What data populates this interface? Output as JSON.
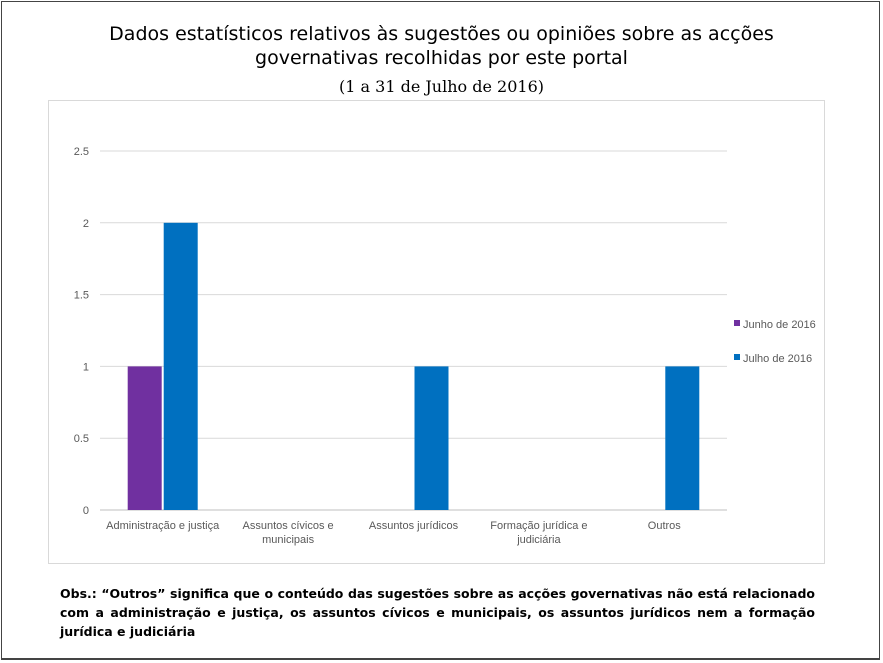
{
  "chart_data": {
    "type": "bar",
    "title": [
      "Dados estatísticos relativos às sugestões ou opiniões sobre as acções",
      "governativas recolhidas por este portal"
    ],
    "subtitle": "(1 a 31 de Julho de 2016)",
    "xlabel": "",
    "ylabel": "",
    "ylim": [
      0,
      2.5
    ],
    "yticks": [
      "0",
      "0.5",
      "1",
      "1.5",
      "2",
      "2.5"
    ],
    "ytick_values": [
      0,
      0.5,
      1,
      1.5,
      2,
      2.5
    ],
    "categories": [
      [
        "Administração e justiça"
      ],
      [
        "Assuntos cívicos e",
        "municipais"
      ],
      [
        "Assuntos jurídicos"
      ],
      [
        "Formação jurídica e",
        "judiciária"
      ],
      [
        "Outros"
      ]
    ],
    "series": [
      {
        "name": "Junho de 2016",
        "color": "#7030a0",
        "values": [
          1,
          0,
          0,
          0,
          0
        ]
      },
      {
        "name": "Julho de 2016",
        "color": "#0070c0",
        "values": [
          2,
          0,
          1,
          0,
          1
        ]
      }
    ],
    "legend_position": "right",
    "grid": true
  },
  "note": "Obs.: “Outros” significa que o conteúdo das sugestões sobre as acções governativas não está relacionado com a administração e justiça, os assuntos cívicos e municipais, os assuntos jurídicos nem a formação jurídica e judiciária"
}
